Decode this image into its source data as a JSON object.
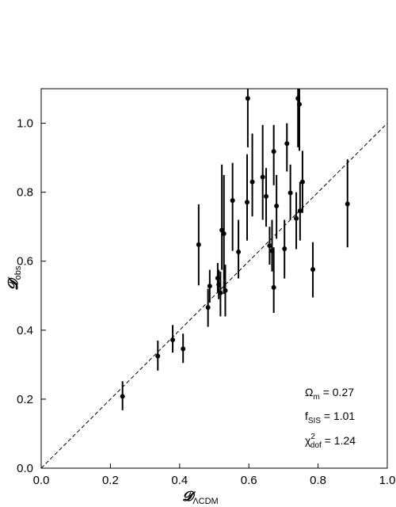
{
  "chart_data": {
    "type": "scatter",
    "title": "",
    "xlabel": {
      "main": "𝓓",
      "sub": "ΛCDM"
    },
    "ylabel": {
      "main": "𝓓",
      "sub": "obs"
    },
    "xlim": [
      0.0,
      1.0
    ],
    "ylim": [
      0.0,
      1.1
    ],
    "xticks": [
      "0.0",
      "0.2",
      "0.4",
      "0.6",
      "0.8",
      "1.0"
    ],
    "yticks": [
      "0.0",
      "0.2",
      "0.4",
      "0.6",
      "0.8",
      "1.0"
    ],
    "grid": false,
    "reference_line": {
      "style": "dashed",
      "x": [
        0.0,
        1.0
      ],
      "y": [
        0.0,
        1.0
      ]
    },
    "points": [
      {
        "x": 0.235,
        "y": 0.208,
        "lo": 0.168,
        "hi": 0.252
      },
      {
        "x": 0.337,
        "y": 0.325,
        "lo": 0.283,
        "hi": 0.37
      },
      {
        "x": 0.38,
        "y": 0.372,
        "lo": 0.335,
        "hi": 0.415
      },
      {
        "x": 0.41,
        "y": 0.346,
        "lo": 0.305,
        "hi": 0.39
      },
      {
        "x": 0.455,
        "y": 0.648,
        "lo": 0.53,
        "hi": 0.765
      },
      {
        "x": 0.482,
        "y": 0.466,
        "lo": 0.41,
        "hi": 0.52
      },
      {
        "x": 0.487,
        "y": 0.528,
        "lo": 0.48,
        "hi": 0.575
      },
      {
        "x": 0.51,
        "y": 0.551,
        "lo": 0.51,
        "hi": 0.595
      },
      {
        "x": 0.513,
        "y": 0.532,
        "lo": 0.49,
        "hi": 0.575
      },
      {
        "x": 0.518,
        "y": 0.508,
        "lo": 0.44,
        "hi": 0.57
      },
      {
        "x": 0.522,
        "y": 0.69,
        "lo": 0.575,
        "hi": 0.88
      },
      {
        "x": 0.528,
        "y": 0.68,
        "lo": 0.505,
        "hi": 0.85
      },
      {
        "x": 0.532,
        "y": 0.515,
        "lo": 0.44,
        "hi": 0.59
      },
      {
        "x": 0.553,
        "y": 0.776,
        "lo": 0.63,
        "hi": 0.885
      },
      {
        "x": 0.57,
        "y": 0.627,
        "lo": 0.55,
        "hi": 0.72
      },
      {
        "x": 0.595,
        "y": 0.771,
        "lo": 0.66,
        "hi": 0.91
      },
      {
        "x": 0.597,
        "y": 1.072,
        "lo": 0.93,
        "hi": 1.1
      },
      {
        "x": 0.61,
        "y": 0.83,
        "lo": 0.73,
        "hi": 0.97
      },
      {
        "x": 0.64,
        "y": 0.844,
        "lo": 0.72,
        "hi": 0.995
      },
      {
        "x": 0.65,
        "y": 0.788,
        "lo": 0.7,
        "hi": 0.87
      },
      {
        "x": 0.66,
        "y": 0.645,
        "lo": 0.59,
        "hi": 0.7
      },
      {
        "x": 0.667,
        "y": 0.63,
        "lo": 0.57,
        "hi": 0.72
      },
      {
        "x": 0.672,
        "y": 0.918,
        "lo": 0.82,
        "hi": 0.995
      },
      {
        "x": 0.672,
        "y": 0.524,
        "lo": 0.45,
        "hi": 0.64
      },
      {
        "x": 0.68,
        "y": 0.76,
        "lo": 0.665,
        "hi": 0.85
      },
      {
        "x": 0.703,
        "y": 0.636,
        "lo": 0.55,
        "hi": 0.72
      },
      {
        "x": 0.71,
        "y": 0.941,
        "lo": 0.86,
        "hi": 1.0
      },
      {
        "x": 0.72,
        "y": 0.798,
        "lo": 0.72,
        "hi": 0.88
      },
      {
        "x": 0.737,
        "y": 0.724,
        "lo": 0.635,
        "hi": 0.8
      },
      {
        "x": 0.742,
        "y": 1.072,
        "lo": 0.93,
        "hi": 1.1
      },
      {
        "x": 0.746,
        "y": 1.055,
        "lo": 0.92,
        "hi": 1.1
      },
      {
        "x": 0.748,
        "y": 0.746,
        "lo": 0.66,
        "hi": 0.83
      },
      {
        "x": 0.755,
        "y": 0.83,
        "lo": 0.74,
        "hi": 0.92
      },
      {
        "x": 0.785,
        "y": 0.576,
        "lo": 0.495,
        "hi": 0.655
      },
      {
        "x": 0.885,
        "y": 0.766,
        "lo": 0.64,
        "hi": 0.895
      }
    ],
    "annotations": [
      {
        "main": "Ω",
        "sub": "m",
        "sup": "",
        "value": " = 0.27"
      },
      {
        "main": "f",
        "sub": "SIS",
        "sup": "",
        "value": " = 1.01"
      },
      {
        "main": "χ",
        "sub": "dof",
        "sup": "2",
        "value": " = 1.24"
      }
    ]
  }
}
